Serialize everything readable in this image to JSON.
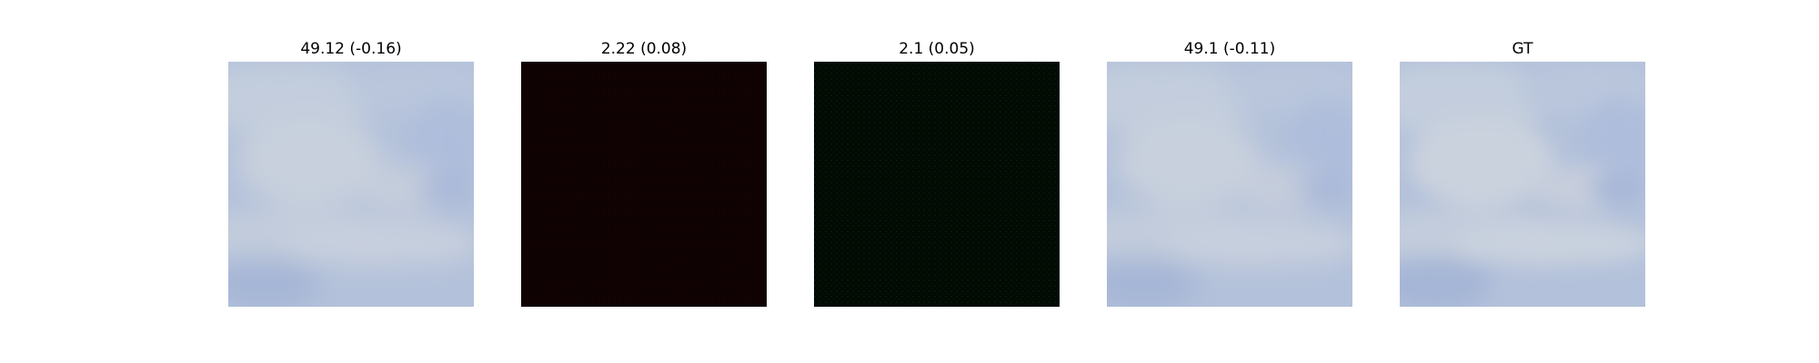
{
  "panels": [
    {
      "title": "49.12 (-0.16)",
      "image": "sky-clouds",
      "base_color": "#c0cbdd"
    },
    {
      "title": "2.22 (0.08)",
      "image": "dark-red-noise",
      "base_color": "#0f0203"
    },
    {
      "title": "2.1 (0.05)",
      "image": "dark-green-noise",
      "base_color": "#020a03"
    },
    {
      "title": "49.1 (-0.11)",
      "image": "sky-clouds",
      "base_color": "#c0cbdd"
    },
    {
      "title": "GT",
      "image": "sky-clouds",
      "base_color": "#c0cbdd"
    }
  ]
}
